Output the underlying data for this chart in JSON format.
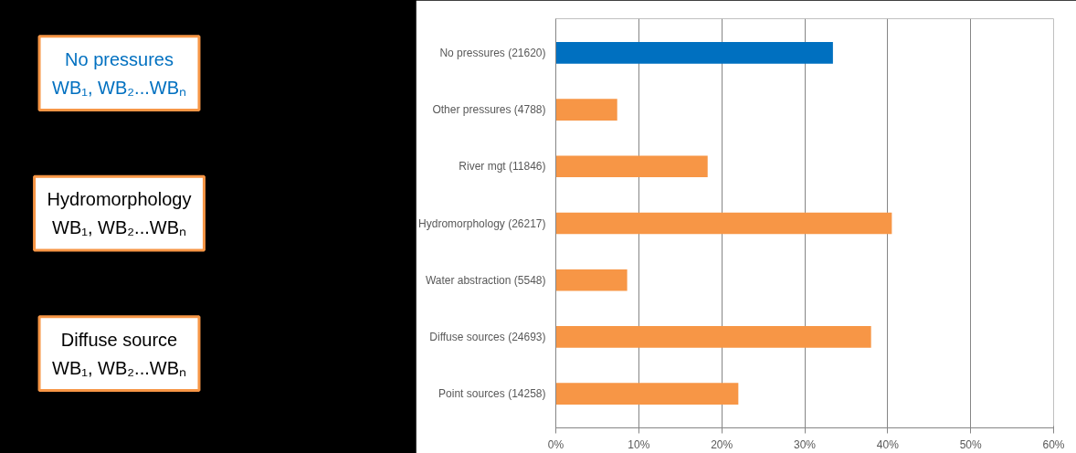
{
  "chart_data": {
    "type": "bar",
    "orientation": "horizontal",
    "categories": [
      "No pressures (21620)",
      "Other pressures (4788)",
      "River mgt (11846)",
      "Hydromorphology (26217)",
      "Water abstraction (5548)",
      "Diffuse sources (24693)",
      "Point sources (14258)"
    ],
    "values": [
      33.4,
      7.4,
      18.3,
      40.5,
      8.6,
      38.0,
      22.0
    ],
    "colors": [
      "#0070c0",
      "#f79646",
      "#f79646",
      "#f79646",
      "#f79646",
      "#f79646",
      "#f79646"
    ],
    "xlim": [
      0,
      60
    ],
    "xticks": [
      {
        "value": 0,
        "label": "0%"
      },
      {
        "value": 10,
        "label": "10%"
      },
      {
        "value": 20,
        "label": "20%"
      },
      {
        "value": 30,
        "label": "30%"
      },
      {
        "value": 40,
        "label": "40%"
      },
      {
        "value": 50,
        "label": "50%"
      },
      {
        "value": 60,
        "label": "60%"
      }
    ],
    "grid": "x",
    "annotations": [
      "No pressures\nWB₁, WB₂...WBₙ",
      "Hydromorphology\nWB₁, WB₂...WBₙ",
      "Diffuse source\nWB₁, WB₂...WBₙ"
    ]
  }
}
